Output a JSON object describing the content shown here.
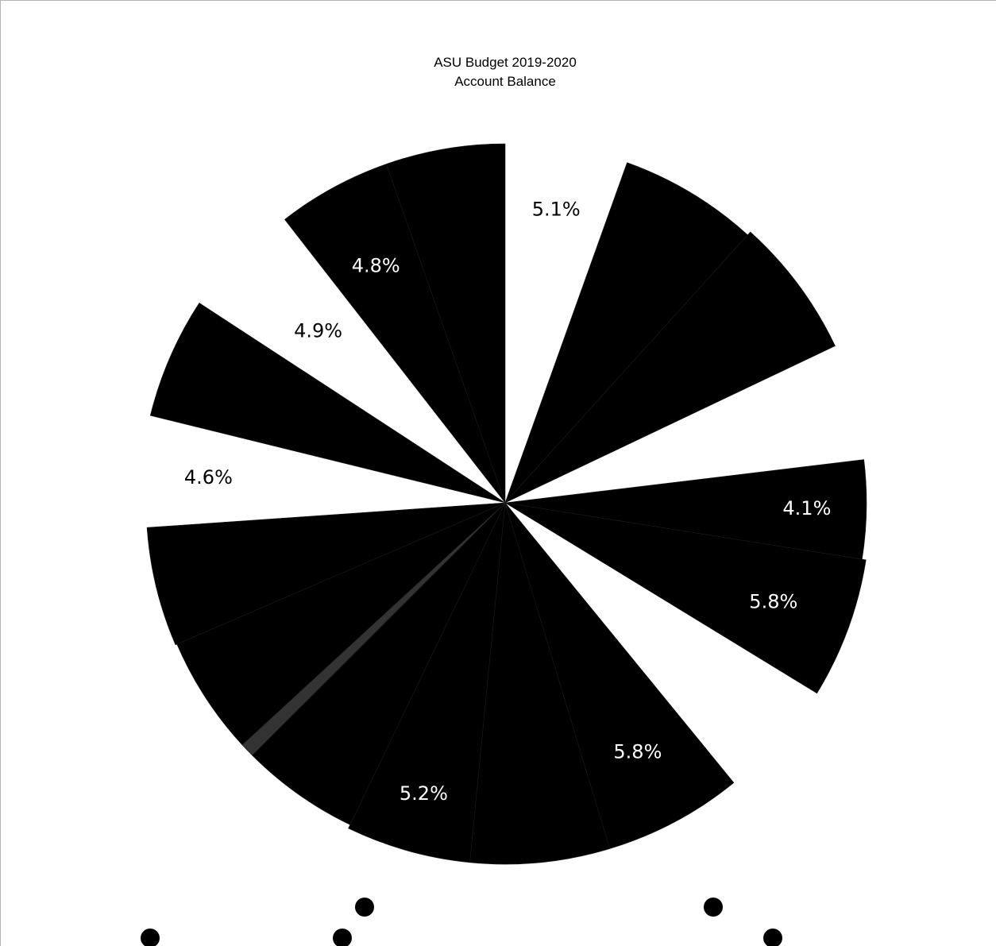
{
  "chart_data": {
    "type": "pie",
    "title": "ASU Budget 2019-2020",
    "subtitle": "Account Balance",
    "colors": {
      "slice": "#000000",
      "label_inside": "#ffffff",
      "label_outside": "#000000",
      "background": "#ffffff",
      "highlight": "#333333"
    },
    "slices": [
      {
        "label": "5.1%",
        "value": 5.1
      },
      {
        "label": "5.8%",
        "value": 5.8
      },
      {
        "label": "5.8%",
        "value": 5.8
      },
      {
        "label": "",
        "value": 4.8
      },
      {
        "label": "4.1%",
        "value": 4.1
      },
      {
        "label": "5.8%",
        "value": 5.8
      },
      {
        "label": "",
        "value": 5.0
      },
      {
        "label": "5.8%",
        "value": 5.8
      },
      {
        "label": "5.8%",
        "value": 5.8
      },
      {
        "label": "5.2%",
        "value": 5.2
      },
      {
        "label": "",
        "value": 5.0
      },
      {
        "label": "",
        "value": 0.6
      },
      {
        "label": "",
        "value": 5.0
      },
      {
        "label": "",
        "value": 5.0
      },
      {
        "label": "4.6%",
        "value": 4.6
      },
      {
        "label": "",
        "value": 5.0
      },
      {
        "label": "4.9%",
        "value": 4.9
      },
      {
        "label": "4.8%",
        "value": 4.8
      },
      {
        "label": "",
        "value": 5.0
      }
    ],
    "legend_position": "bottom"
  }
}
